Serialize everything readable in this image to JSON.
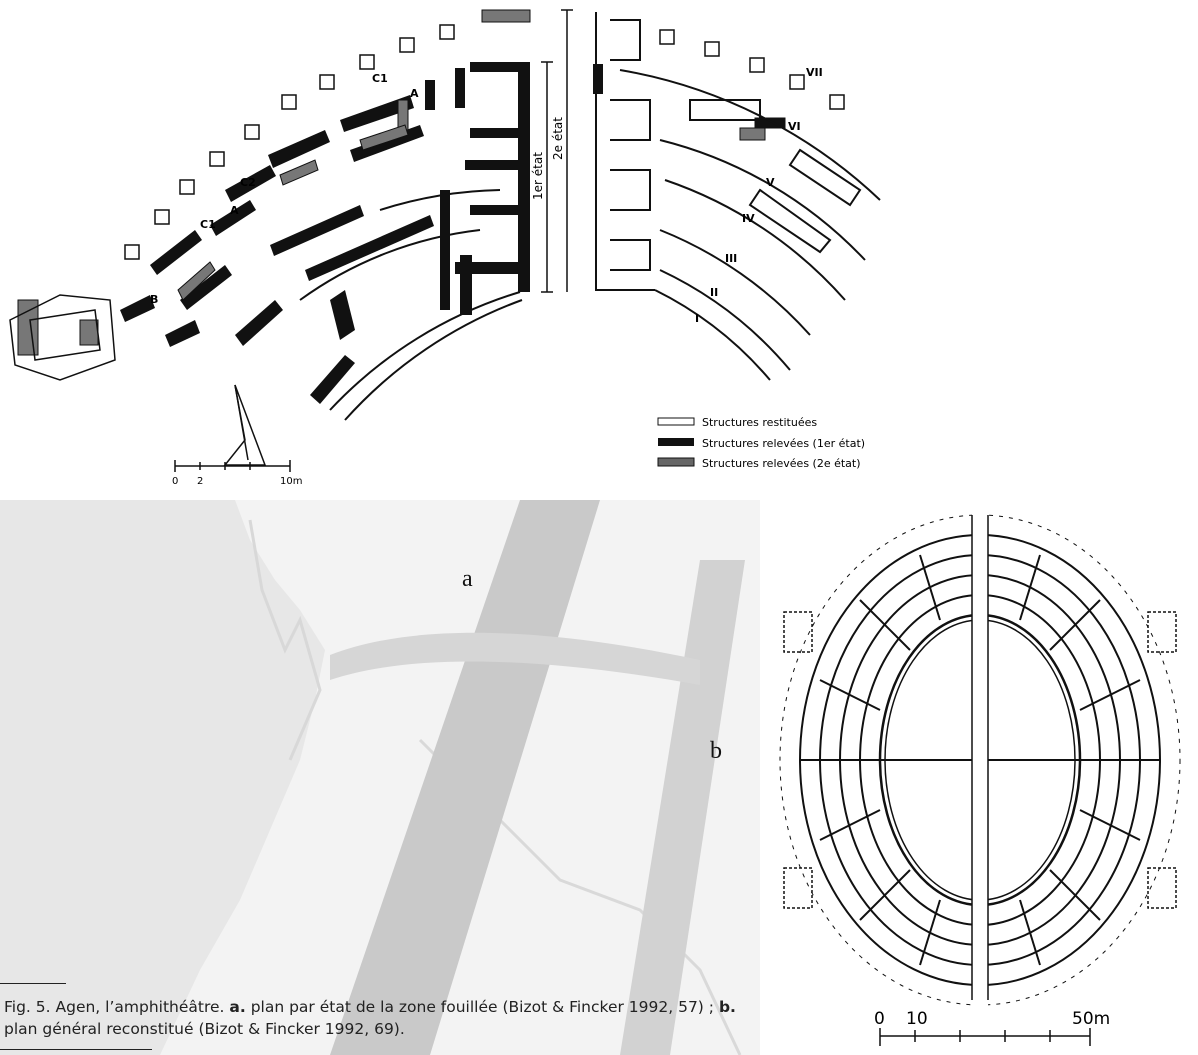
{
  "figure": {
    "panel_a_label": "a",
    "panel_b_label": "b"
  },
  "plan_a": {
    "state_labels": {
      "first": "1er état",
      "second": "2e état"
    },
    "zone_labels": {
      "c1_upper": "C1",
      "a_upper": "A",
      "c2": "C2",
      "a_lower": "A",
      "c1_lower": "C1",
      "b": "B"
    },
    "roman_labels": [
      "VII",
      "VI",
      "V",
      "IV",
      "III",
      "II",
      "I"
    ],
    "legend": [
      {
        "style": "outline",
        "text": "Structures restituées"
      },
      {
        "style": "solid",
        "text": "Structures relevées (1er état)"
      },
      {
        "style": "hatched",
        "text": "Structures relevées (2e  état)"
      }
    ],
    "scale_labels": {
      "zero": "0",
      "two": "2",
      "ten": "10m"
    }
  },
  "plan_b": {
    "scale_labels": {
      "zero": "0",
      "ten": "10",
      "fifty": "50m"
    }
  },
  "caption": {
    "prefix": "Fig. 5. Agen, l’amphithéâtre. ",
    "a_bold": "a.",
    "a_text": " plan par état de la zone fouillée (Bizot & Fincker 1992, 57) ; ",
    "b_bold": "b.",
    "b_text": " plan général reconstitué (Bizot & Fincker 1992, 69)."
  },
  "colors": {
    "ink": "#111111",
    "watermark": "#dcdcdc",
    "watermark_dark": "#c4c4c4",
    "background_map": "#f2f2f2"
  }
}
